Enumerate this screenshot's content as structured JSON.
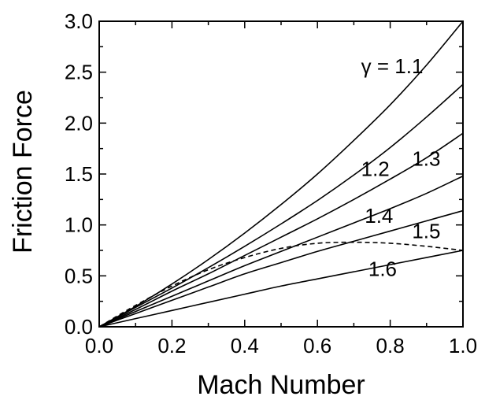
{
  "chart_data": {
    "type": "line",
    "xlabel": "Mach Number",
    "ylabel": "Friction Force",
    "xlim": [
      0.0,
      1.0
    ],
    "ylim": [
      0.0,
      3.0
    ],
    "x_ticks": [
      "0.0",
      "0.2",
      "0.4",
      "0.6",
      "0.8",
      "1.0"
    ],
    "y_ticks": [
      "0.0",
      "0.5",
      "1.0",
      "1.5",
      "2.0",
      "2.5",
      "3.0"
    ],
    "grid": false,
    "legend": "none",
    "x": [
      0.0,
      0.1,
      0.2,
      0.3,
      0.4,
      0.5,
      0.6,
      0.7,
      0.8,
      0.9,
      1.0
    ],
    "series": [
      {
        "label": "γ = 1.1",
        "style": "solid",
        "values": [
          0.0,
          0.2,
          0.42,
          0.66,
          0.92,
          1.2,
          1.5,
          1.83,
          2.18,
          2.57,
          3.0
        ]
      },
      {
        "label": "1.2",
        "style": "solid",
        "values": [
          0.0,
          0.19,
          0.38,
          0.58,
          0.79,
          1.01,
          1.24,
          1.49,
          1.76,
          2.06,
          2.38
        ]
      },
      {
        "label": "1.3",
        "style": "solid",
        "values": [
          0.0,
          0.17,
          0.35,
          0.52,
          0.7,
          0.88,
          1.06,
          1.25,
          1.45,
          1.66,
          1.9
        ]
      },
      {
        "label": "1.4",
        "style": "solid",
        "values": [
          0.0,
          0.15,
          0.3,
          0.45,
          0.6,
          0.74,
          0.88,
          1.02,
          1.16,
          1.31,
          1.48
        ]
      },
      {
        "label": "1.5",
        "style": "solid",
        "values": [
          0.0,
          0.13,
          0.26,
          0.39,
          0.52,
          0.63,
          0.74,
          0.84,
          0.94,
          1.04,
          1.14
        ]
      },
      {
        "label": "1.6",
        "style": "solid",
        "values": [
          0.0,
          0.08,
          0.16,
          0.24,
          0.32,
          0.4,
          0.47,
          0.54,
          0.61,
          0.68,
          0.75
        ]
      },
      {
        "label": "",
        "style": "dashed",
        "values": [
          0.0,
          0.21,
          0.4,
          0.56,
          0.68,
          0.77,
          0.82,
          0.83,
          0.82,
          0.79,
          0.75
        ]
      }
    ],
    "curve_labels": [
      {
        "text": "γ = 1.1",
        "x": 0.72,
        "y": 2.49
      },
      {
        "text": "1.2",
        "x": 0.72,
        "y": 1.48
      },
      {
        "text": "1.3",
        "x": 0.86,
        "y": 1.58
      },
      {
        "text": "1.4",
        "x": 0.73,
        "y": 1.02
      },
      {
        "text": "1.5",
        "x": 0.86,
        "y": 0.87
      },
      {
        "text": "1.6",
        "x": 0.74,
        "y": 0.5
      }
    ]
  }
}
